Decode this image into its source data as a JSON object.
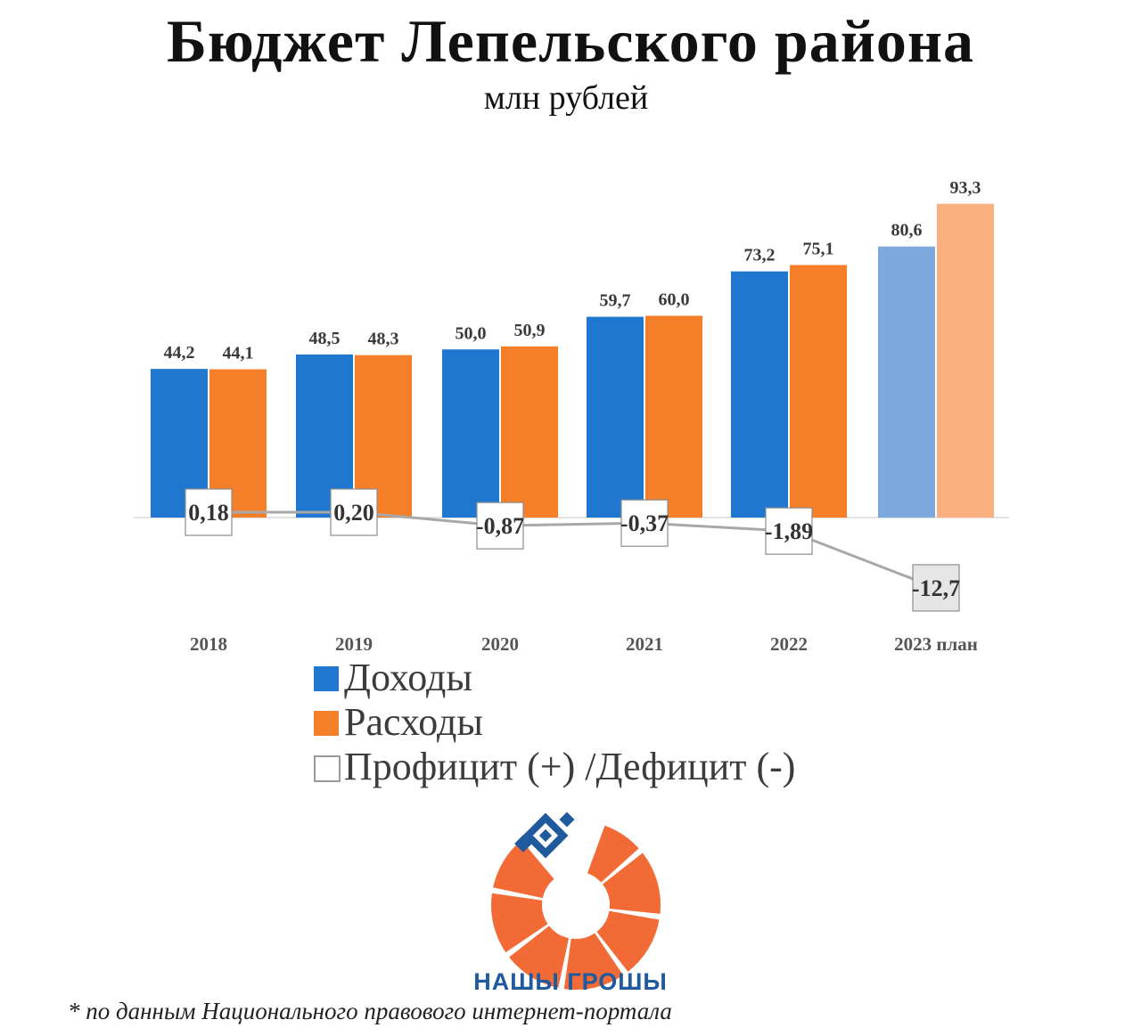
{
  "header": {
    "title": "Бюджет Лепельского района",
    "subtitle": "млн рублей"
  },
  "colors": {
    "income": "#1f77d0",
    "expense": "#f57f28",
    "income_plan": "#7ea9de",
    "expense_plan": "#f9b07e",
    "balance_line": "#a8a8a8",
    "balance_box_fill_plan": "#e6e6e6",
    "logo_orange": "#f26b36",
    "logo_blue": "#1f5a9e"
  },
  "legend": [
    {
      "label": "Доходы",
      "color": "#1f77d0",
      "shape": "filled-square"
    },
    {
      "label": "Расходы",
      "color": "#f57f28",
      "shape": "filled-square"
    },
    {
      "label": "Профицит (+) /Дефицит (-)",
      "color": "#ffffff",
      "shape": "outlined-square"
    }
  ],
  "chart_data": {
    "type": "bar",
    "categories": [
      "2018",
      "2019",
      "2020",
      "2021",
      "2022",
      "2023 план"
    ],
    "series": [
      {
        "name": "Доходы",
        "type": "bar",
        "values": [
          44.2,
          48.5,
          50.0,
          59.7,
          73.2,
          80.6
        ],
        "labels": [
          "44,2",
          "48,5",
          "50,0",
          "59,7",
          "73,2",
          "80,6"
        ]
      },
      {
        "name": "Расходы",
        "type": "bar",
        "values": [
          44.1,
          48.3,
          50.9,
          60.0,
          75.1,
          93.3
        ],
        "labels": [
          "44,1",
          "48,3",
          "50,9",
          "60,0",
          "75,1",
          "93,3"
        ]
      },
      {
        "name": "Профицит (+) /Дефицит (-)",
        "type": "line",
        "values": [
          0.18,
          0.2,
          -0.87,
          -0.37,
          -1.89,
          -12.7
        ],
        "labels": [
          "0,18",
          "0,20",
          "-0,87",
          "-0,37",
          "-1,89",
          "-12,7"
        ]
      }
    ],
    "ylim": [
      -16,
      97
    ],
    "grid": false,
    "legend_position": "bottom-left",
    "plan_category_index": 5
  },
  "logo": {
    "text": "НАШЫ ГРОШЫ"
  },
  "footnote": "* по данным Национального правового интернет-портала"
}
